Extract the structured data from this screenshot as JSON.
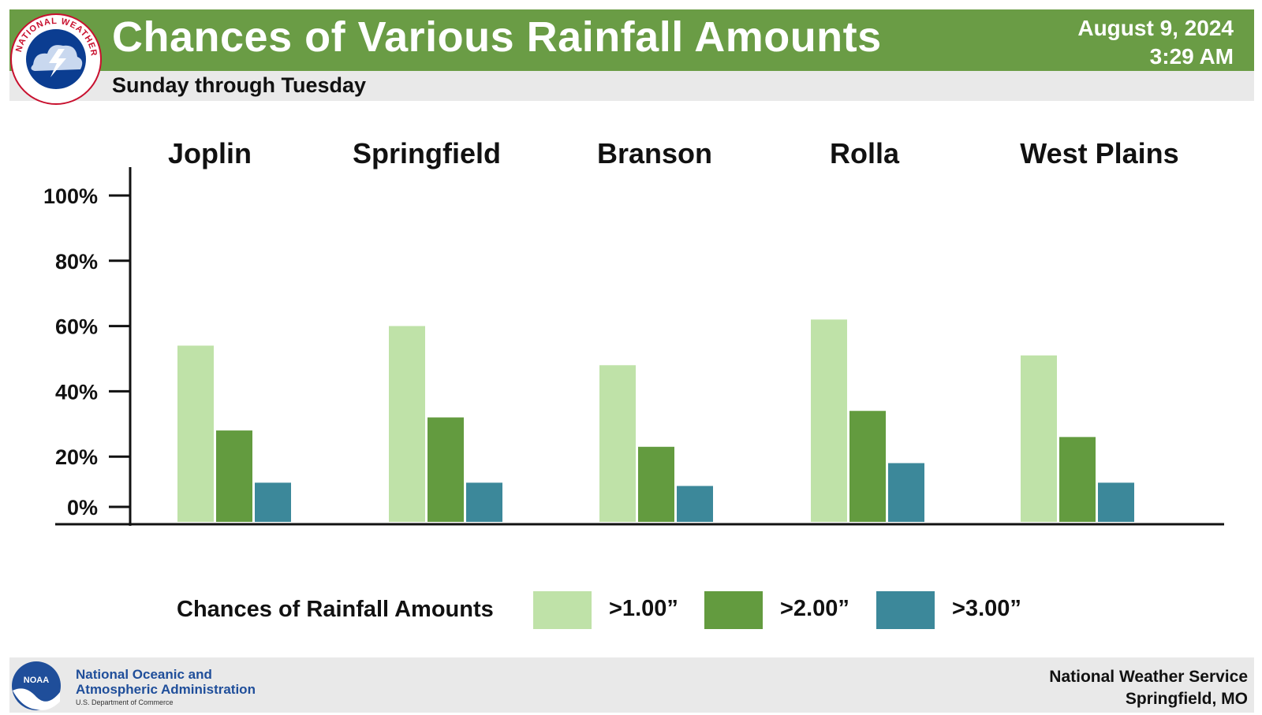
{
  "header": {
    "title": "Chances of Various Rainfall Amounts",
    "subtitle": "Sunday through Tuesday",
    "date": "August 9, 2024",
    "time": "3:29 AM",
    "logo_icon": "nws-logo-icon",
    "logo_text": "NATIONAL WEATHER SERVICE"
  },
  "colors": {
    "header_green": "#6a9c45",
    "gray_band": "#e9e9e9",
    "series_1": "#bfe2a8",
    "series_2": "#639b3f",
    "series_3": "#3c889a",
    "noaa_blue": "#1f4e9a"
  },
  "chart_data": {
    "type": "bar",
    "categories": [
      "Joplin",
      "Springfield",
      "Branson",
      "Rolla",
      "West Plains"
    ],
    "series": [
      {
        "name": ">1.00”",
        "values": [
          54,
          60,
          48,
          62,
          51
        ]
      },
      {
        "name": ">2.00”",
        "values": [
          28,
          32,
          23,
          34,
          26
        ]
      },
      {
        "name": ">3.00”",
        "values": [
          12,
          12,
          11,
          18,
          12
        ]
      }
    ],
    "yticks": [
      "0%",
      "20%",
      "40%",
      "60%",
      "80%",
      "100%"
    ],
    "ytick_values": [
      0,
      20,
      40,
      60,
      80,
      100
    ],
    "ylim": [
      0,
      100
    ],
    "grid": false,
    "legend_title": "Chances of Rainfall Amounts",
    "legend_position": "bottom"
  },
  "footer": {
    "noaa_line1": "National Oceanic and",
    "noaa_line2": "Atmospheric Administration",
    "noaa_dept": "U.S. Department of Commerce",
    "noaa_logo_text": "NOAA",
    "office_line1": "National Weather Service",
    "office_line2": "Springfield, MO"
  }
}
